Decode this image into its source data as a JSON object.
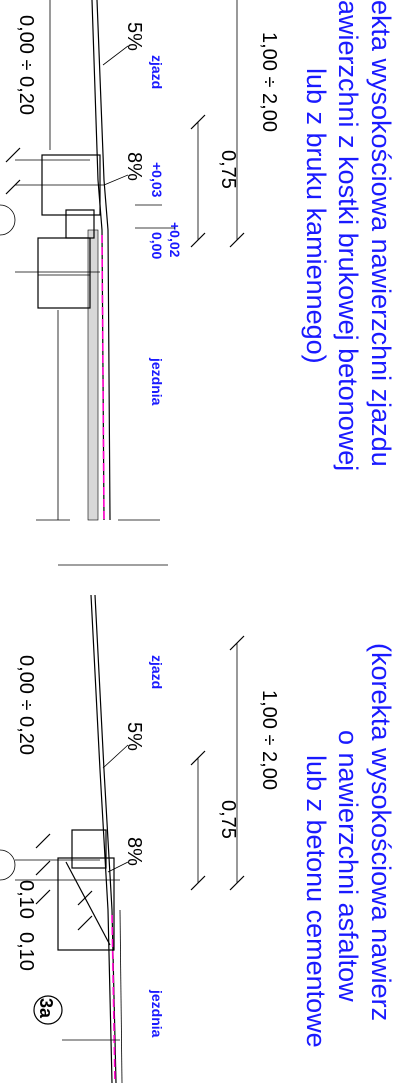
{
  "captions": {
    "top": [
      "ekta wysokościowa nawierzchni zjazdu",
      "awierzchni z kostki brukowej betonowej",
      "lub z bruku kamiennego)"
    ],
    "bottom": [
      "(korekta wysokościowa nawierz",
      "o nawierzchni asfaltow",
      "lub z betonu cementowe"
    ]
  },
  "top_section": {
    "width_label": "1,00 ÷ 2,00",
    "sub_width_label": "0,75",
    "slope_1": "5%",
    "slope_2": "8%",
    "zone_left": "zjazd",
    "zone_right": "jezdnia",
    "level_1": "+0,03",
    "level_2": "0,00",
    "level_3": "+0,02",
    "side_dim": "0,00 ÷ 0,20"
  },
  "bottom_section": {
    "width_label": "1,00 ÷ 2,00",
    "sub_width_label": "0,75",
    "slope_1": "5%",
    "slope_2": "8%",
    "zone_left": "zjazd",
    "zone_right": "jezdnia",
    "side_dim": "0,00 ÷ 0,20",
    "dim_a": "0,10",
    "dim_b": "0,10",
    "marker": "3a"
  },
  "colors": {
    "caption": "#1a1aff",
    "layer_line": "#ff00cc",
    "ink": "#000000"
  }
}
